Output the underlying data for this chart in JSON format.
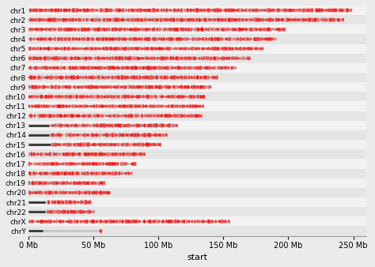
{
  "chromosomes": [
    "chr1",
    "chr2",
    "chr3",
    "chr4",
    "chr5",
    "chr6",
    "chr7",
    "chr8",
    "chr9",
    "chr10",
    "chr11",
    "chr12",
    "chr13",
    "chr14",
    "chr15",
    "chr16",
    "chr17",
    "chr18",
    "chr19",
    "chr20",
    "chr21",
    "chr22",
    "chrX",
    "chrY"
  ],
  "chr_lengths_mb": [
    249,
    243,
    198,
    191,
    181,
    171,
    160,
    146,
    141,
    136,
    135,
    134,
    115,
    107,
    102,
    90,
    83,
    80,
    59,
    63,
    48,
    51,
    155,
    57
  ],
  "centromere_starts_mb": [
    null,
    null,
    null,
    null,
    null,
    null,
    null,
    null,
    null,
    null,
    null,
    null,
    16,
    16,
    17,
    null,
    null,
    null,
    null,
    null,
    13,
    13,
    null,
    11
  ],
  "centromere_ends_mb": [
    null,
    null,
    null,
    null,
    null,
    null,
    null,
    null,
    null,
    null,
    null,
    null,
    17.5,
    17.5,
    18.5,
    null,
    null,
    null,
    null,
    null,
    14.5,
    14.5,
    null,
    55
  ],
  "background_color": "#EBEBEB",
  "row_bg_even": "#F2F2F2",
  "row_bg_odd": "#E5E5E5",
  "chr_band_color": "#C8C8C8",
  "red_mark_color": "#FF0000",
  "dark_line_color": "#2A2A2A",
  "xlabel": "start",
  "xlim": [
    0,
    260
  ],
  "xticks": [
    0,
    50,
    100,
    150,
    200,
    250
  ],
  "xticklabels": [
    "0 Mb",
    "50 Mb",
    "100 Mb",
    "150 Mb",
    "200 Mb",
    "250 Mb"
  ],
  "figsize": [
    4.74,
    3.38
  ],
  "dpi": 100
}
